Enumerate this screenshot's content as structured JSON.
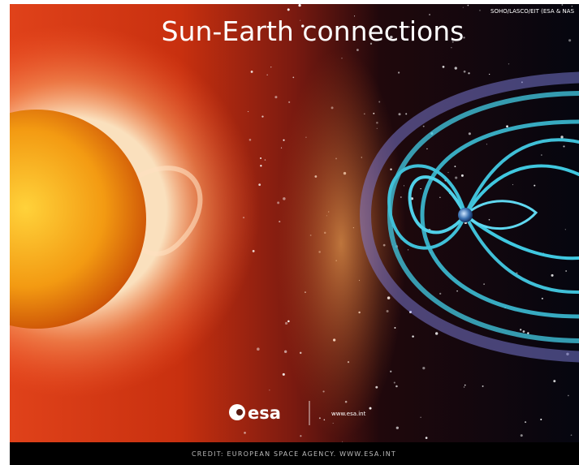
{
  "header": {
    "title": "Sun-Earth connections",
    "image_credit": "SOHO/LASCO/EIT (ESA & NAS"
  },
  "logo": {
    "name": "esa",
    "url": "www.esa.int"
  },
  "footer": {
    "credit": "CREDIT: EUROPEAN SPACE AGENCY. WWW.ESA.INT"
  }
}
